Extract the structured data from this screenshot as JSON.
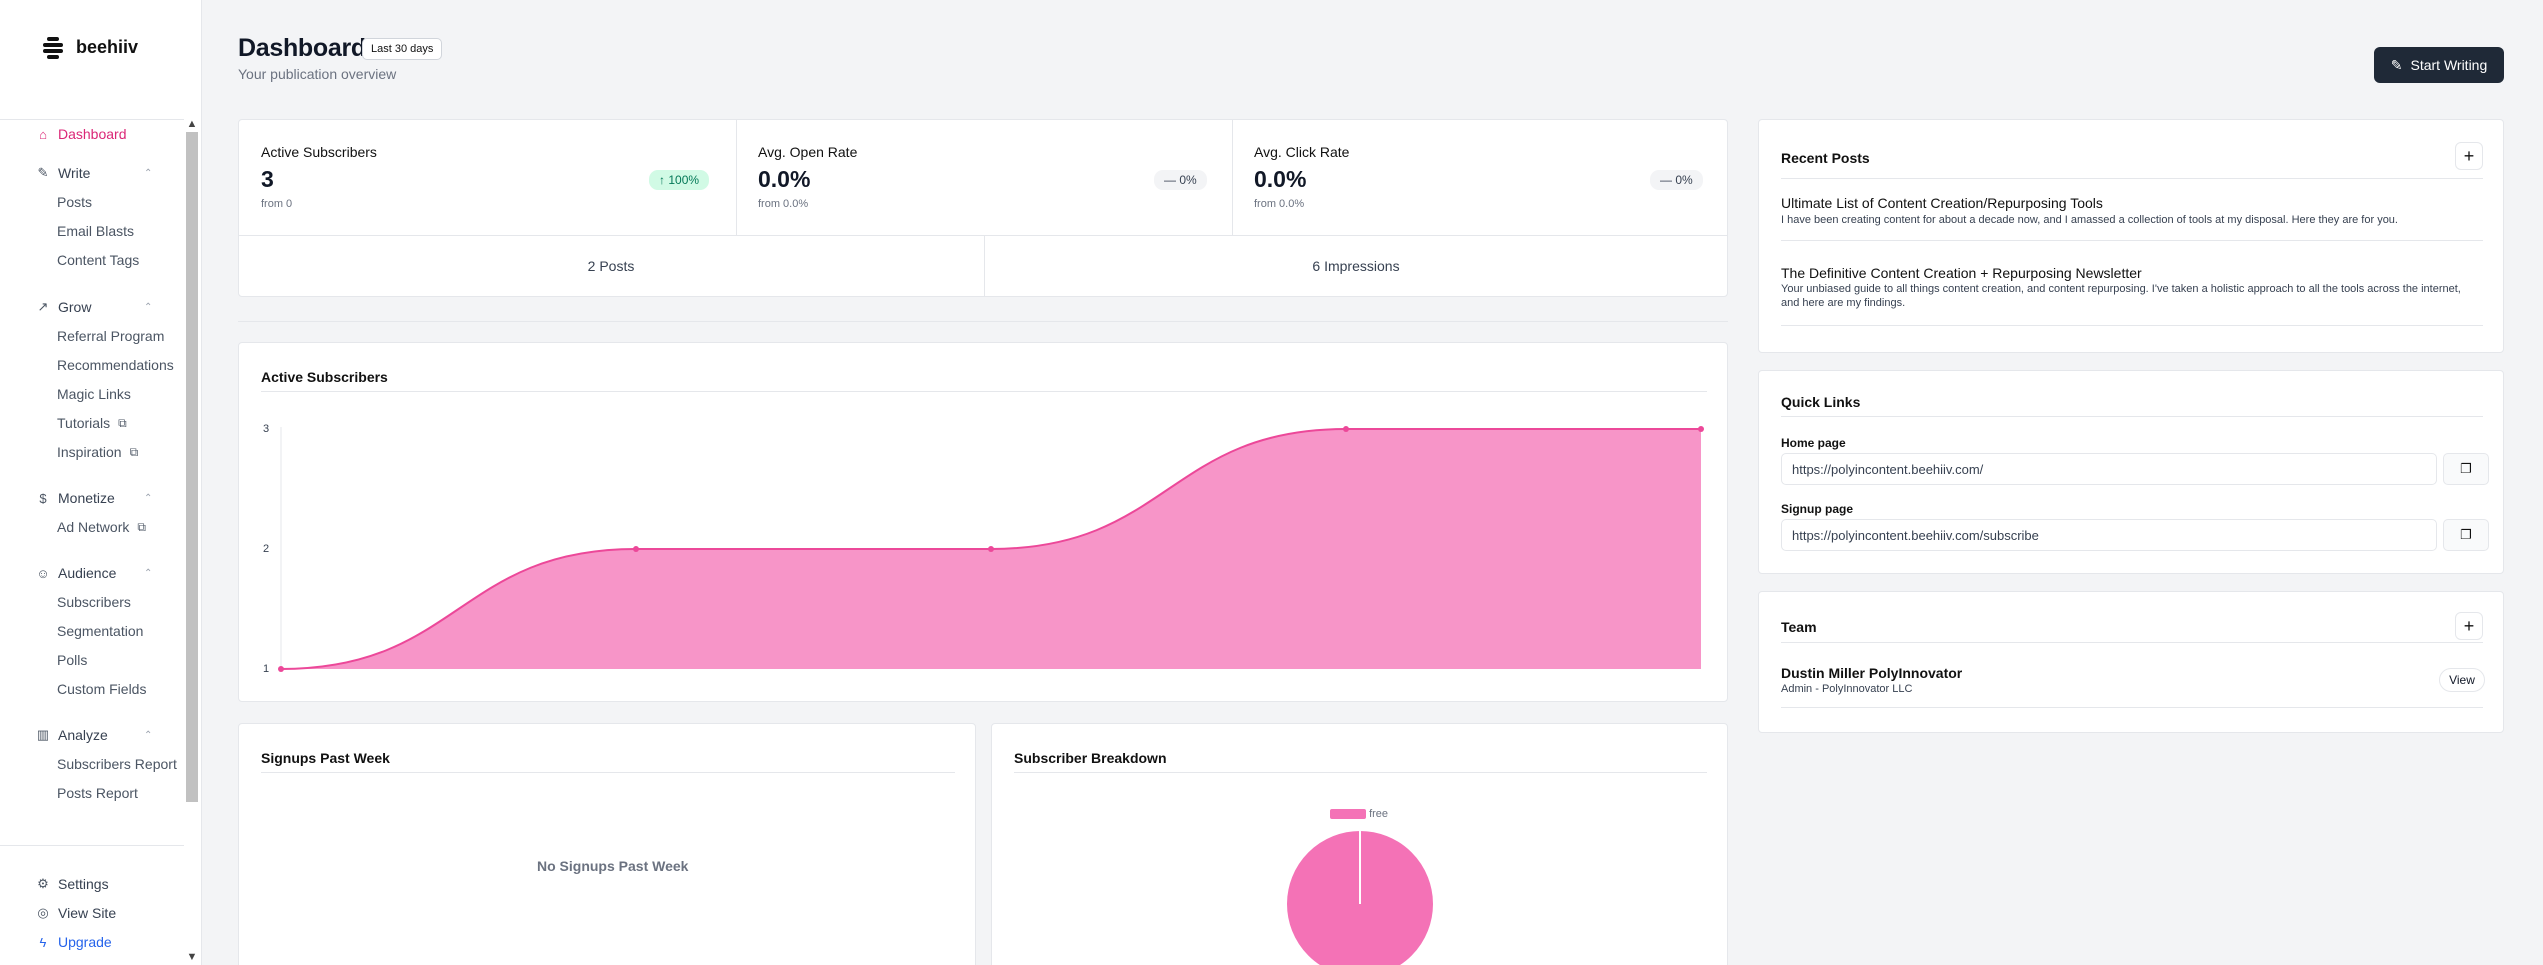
{
  "brand": {
    "name": "beehiiv"
  },
  "sidebar": {
    "dashboard": "Dashboard",
    "write": {
      "label": "Write",
      "items": [
        "Posts",
        "Email Blasts",
        "Content Tags"
      ]
    },
    "grow": {
      "label": "Grow",
      "items": [
        "Referral Program",
        "Recommendations",
        "Magic Links",
        "Tutorials",
        "Inspiration"
      ]
    },
    "monetize": {
      "label": "Monetize",
      "items": [
        "Ad Network"
      ]
    },
    "audience": {
      "label": "Audience",
      "items": [
        "Subscribers",
        "Segmentation",
        "Polls",
        "Custom Fields"
      ]
    },
    "analyze": {
      "label": "Analyze",
      "items": [
        "Subscribers Report",
        "Posts Report"
      ]
    },
    "settings": "Settings",
    "view_site": "View Site",
    "upgrade": "Upgrade"
  },
  "header": {
    "title": "Dashboard",
    "range": "Last 30 days",
    "subtitle": "Your publication overview",
    "start_writing": "Start Writing"
  },
  "stats": [
    {
      "label": "Active Subscribers",
      "value": "3",
      "from": "from 0",
      "change": "100%",
      "trend": "up"
    },
    {
      "label": "Avg. Open Rate",
      "value": "0.0%",
      "from": "from 0.0%",
      "change": "0%",
      "trend": "flat"
    },
    {
      "label": "Avg. Click Rate",
      "value": "0.0%",
      "from": "from 0.0%",
      "change": "0%",
      "trend": "flat"
    }
  ],
  "totals": {
    "posts": "2 Posts",
    "impressions": "6 Impressions"
  },
  "chart_data": [
    {
      "type": "area",
      "title": "Active Subscribers",
      "x": [
        0,
        1,
        2,
        3,
        4
      ],
      "values": [
        1,
        2,
        2,
        3,
        3
      ],
      "ylim": [
        1,
        3
      ],
      "yticks": [
        "1",
        "2",
        "3"
      ],
      "color": "#f472b6",
      "line_color": "#ec4899"
    },
    {
      "type": "pie",
      "title": "Subscriber Breakdown",
      "categories": [
        "free"
      ],
      "values": [
        3
      ],
      "colors": [
        "#f472b6"
      ],
      "legend": "top"
    }
  ],
  "signups": {
    "title": "Signups Past Week",
    "empty": "No Signups Past Week"
  },
  "recent_posts": {
    "title": "Recent Posts",
    "items": [
      {
        "title": "Ultimate List of Content Creation/Repurposing Tools",
        "desc": "I have been creating content for about a decade now, and I amassed a collection of tools at my disposal. Here they are for you."
      },
      {
        "title": "The Definitive Content Creation + Repurposing Newsletter",
        "desc": "Your unbiased guide to all things content creation, and content repurposing. I've taken a holistic approach to all the tools across the internet, and here are my findings."
      }
    ]
  },
  "quick_links": {
    "title": "Quick Links",
    "home_label": "Home page",
    "home_url": "https://polyincontent.beehiiv.com/",
    "signup_label": "Signup page",
    "signup_url": "https://polyincontent.beehiiv.com/subscribe"
  },
  "team": {
    "title": "Team",
    "member_name": "Dustin Miller PolyInnovator",
    "member_role": "Admin - PolyInnovator LLC",
    "view": "View"
  },
  "colors": {
    "accent": "#db2777",
    "primary_button": "#1f2937",
    "upgrade": "#2563eb"
  }
}
